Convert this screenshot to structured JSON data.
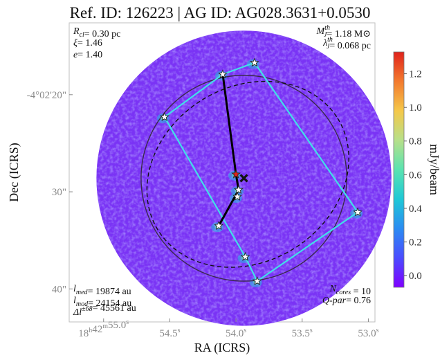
{
  "chart_data": {
    "type": "heatmap",
    "title": "Ref. ID: 126223 | AG ID: AG028.3631+0.0530",
    "xlabel": "RA (ICRS)",
    "ylabel": "Dec (ICRS)",
    "x_ticks": [
      {
        "label": "18h42m55.0s",
        "parts": [
          "18",
          "h",
          "42",
          "m",
          "55.0",
          "s"
        ],
        "ra_s": 55.0
      },
      {
        "label": "54.5s",
        "parts": [
          "54.5",
          "s"
        ],
        "ra_s": 54.5
      },
      {
        "label": "54.0s",
        "parts": [
          "54.0",
          "s"
        ],
        "ra_s": 54.0
      },
      {
        "label": "53.5s",
        "parts": [
          "53.5",
          "s"
        ],
        "ra_s": 53.5
      },
      {
        "label": "53.0s",
        "parts": [
          "53.0",
          "s"
        ],
        "ra_s": 53.0
      }
    ],
    "y_ticks": [
      {
        "label": "-4°02'20\"",
        "dec_arcsec": 20
      },
      {
        "label": "30\"",
        "dec_arcsec": 30
      },
      {
        "label": "40\"",
        "dec_arcsec": 40
      }
    ],
    "x_range_ra_s": [
      55.26,
      52.95
    ],
    "y_range_dec_arcsec": [
      12.6,
      43.4
    ],
    "colorbar": {
      "label": "mJy/beam",
      "ticks": [
        "0.0",
        "0.2",
        "0.4",
        "0.6",
        "0.8",
        "1.0",
        "1.2"
      ],
      "tick_values": [
        0.0,
        0.2,
        0.4,
        0.6,
        0.8,
        1.0,
        1.2
      ],
      "range": [
        -0.07,
        1.33
      ],
      "colors": [
        "#7f00ff",
        "#4b4cff",
        "#2b8cf2",
        "#1fc8d6",
        "#5ae3b0",
        "#b7e08a",
        "#f5c84a",
        "#f37a2e",
        "#e0231c"
      ]
    },
    "annotations": {
      "top_left": [
        {
          "sym": "R",
          "sub": "cl",
          "sup": "",
          "val": "= 0.30 pc"
        },
        {
          "sym": "ξ",
          "sub": "",
          "sup": "",
          "val": "= 1.46"
        },
        {
          "sym": "e",
          "sub": "",
          "sup": "",
          "val": "= 1.40"
        }
      ],
      "top_right": [
        {
          "sym": "M",
          "sub": "J",
          "sup": "th",
          "val": "= 1.18 M⊙"
        },
        {
          "sym": "λ",
          "sub": "J",
          "sup": "th",
          "val": "= 0.068 pc"
        }
      ],
      "bottom_left": [
        {
          "sym": "l",
          "sub": "med",
          "sup": "",
          "val": "= 19874 au"
        },
        {
          "sym": "l",
          "sub": "mod",
          "sup": "",
          "val": "= 24154 au"
        },
        {
          "sym": "Δl",
          "sub": "",
          "sup": "±68",
          "val": "= 45561 au"
        }
      ],
      "bottom_right": [
        {
          "sym": "N",
          "sub": "cores",
          "sup": "",
          "val": " = 10"
        },
        {
          "sym": "Q-par",
          "sub": "",
          "sup": "",
          "val": "= 0.76"
        }
      ]
    },
    "cores_ra_dec": [
      {
        "ra": 54.1,
        "dec": 17.9,
        "color": "#ffffff"
      },
      {
        "ra": 53.86,
        "dec": 16.7,
        "color": "#ffffff"
      },
      {
        "ra": 54.54,
        "dec": 22.3,
        "color": "#ffffff"
      },
      {
        "ra": 54.0,
        "dec": 28.2,
        "color": "#e0231c"
      },
      {
        "ra": 53.98,
        "dec": 29.8,
        "color": "#ffffff"
      },
      {
        "ra": 53.99,
        "dec": 30.5,
        "color": "#ffffff"
      },
      {
        "ra": 54.13,
        "dec": 33.5,
        "color": "#ffffff"
      },
      {
        "ra": 53.08,
        "dec": 32.1,
        "color": "#ffffff"
      },
      {
        "ra": 53.93,
        "dec": 36.7,
        "color": "#ffffff"
      },
      {
        "ra": 53.84,
        "dec": 39.2,
        "color": "#ffffff"
      }
    ],
    "convex_hull_order": [
      1,
      0,
      2,
      8,
      9,
      7
    ],
    "mst_edges": [
      [
        0,
        3
      ],
      [
        3,
        4
      ],
      [
        4,
        6
      ]
    ],
    "center_ra_dec": {
      "ra": 53.94,
      "dec": 28.6
    },
    "circle_radius_arcsec": 10.6,
    "ellipse": {
      "ra": 53.91,
      "dec": 28.2,
      "rx_arcsec": 10.9,
      "ry_arcsec": 9.0,
      "angle_deg": -32
    },
    "field_radius_arcsec": 15.2,
    "grid": false
  }
}
